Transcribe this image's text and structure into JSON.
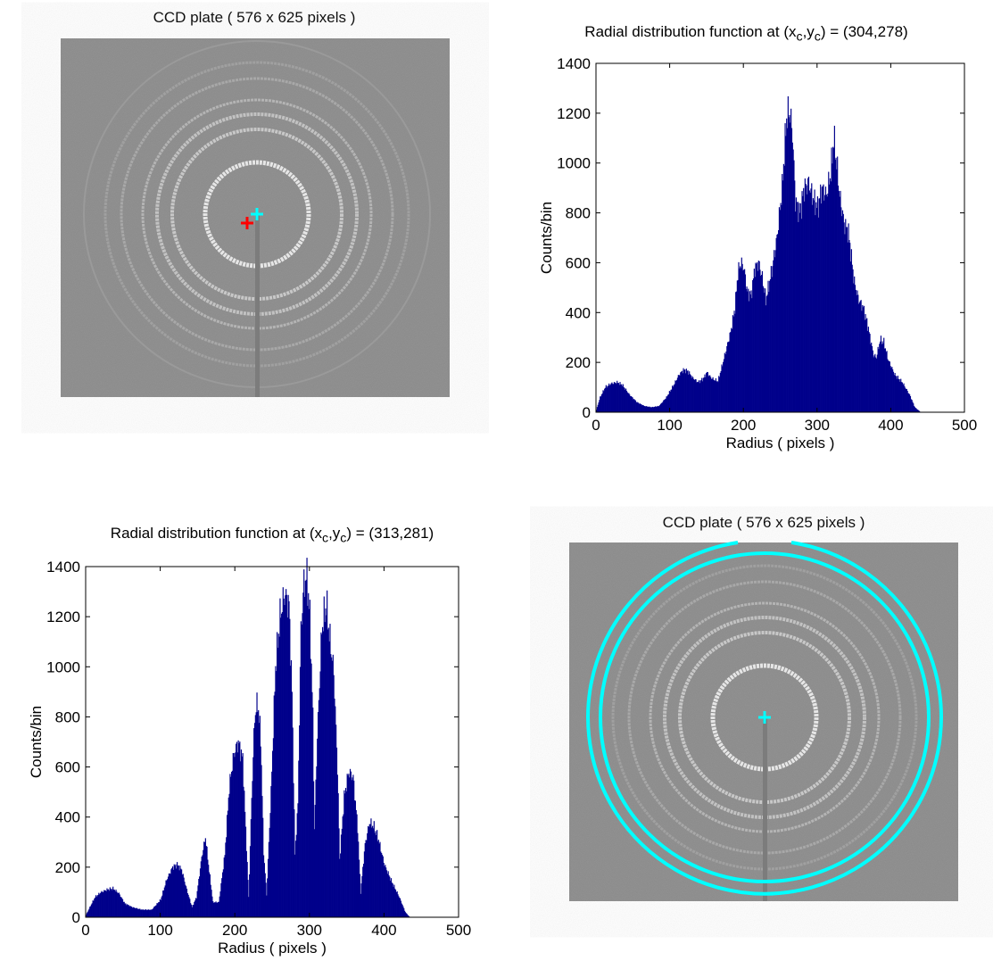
{
  "panels": {
    "top_left": {
      "title": "CCD plate ( 576 x 625 pixels )",
      "marker_colors": {
        "detected_center": "#ff0000",
        "fitted_center": "#00ffff"
      }
    },
    "bottom_right": {
      "title": "CCD plate ( 576 x 625 pixels )",
      "marker_color": "#00ffff",
      "overlay_circle_color": "#00ffff"
    }
  },
  "image_background": "#888888",
  "chart_data": [
    {
      "type": "bar",
      "title_prefix": "Radial distribution function at (x",
      "title_sub1": "c",
      "title_mid": ",y",
      "title_sub2": "c",
      "title_suffix": ") = (304,278)",
      "xlabel": "Radius ( pixels )",
      "ylabel": "Counts/bin",
      "xlim": [
        0,
        500
      ],
      "ylim": [
        0,
        1400
      ],
      "xticks": [
        0,
        100,
        200,
        300,
        400,
        500
      ],
      "yticks": [
        0,
        200,
        400,
        600,
        800,
        1000,
        1200,
        1400
      ],
      "color": "#00008b",
      "grid": false,
      "points": [
        [
          0,
          10
        ],
        [
          5,
          60
        ],
        [
          12,
          100
        ],
        [
          20,
          115
        ],
        [
          28,
          120
        ],
        [
          35,
          110
        ],
        [
          45,
          70
        ],
        [
          55,
          40
        ],
        [
          65,
          25
        ],
        [
          75,
          20
        ],
        [
          85,
          25
        ],
        [
          95,
          60
        ],
        [
          105,
          110
        ],
        [
          112,
          150
        ],
        [
          118,
          170
        ],
        [
          124,
          165
        ],
        [
          130,
          140
        ],
        [
          138,
          120
        ],
        [
          145,
          135
        ],
        [
          150,
          160
        ],
        [
          155,
          140
        ],
        [
          160,
          130
        ],
        [
          165,
          125
        ],
        [
          170,
          180
        ],
        [
          176,
          250
        ],
        [
          182,
          320
        ],
        [
          188,
          420
        ],
        [
          192,
          560
        ],
        [
          196,
          600
        ],
        [
          200,
          580
        ],
        [
          205,
          480
        ],
        [
          210,
          470
        ],
        [
          215,
          580
        ],
        [
          220,
          600
        ],
        [
          225,
          540
        ],
        [
          230,
          450
        ],
        [
          238,
          570
        ],
        [
          245,
          700
        ],
        [
          252,
          900
        ],
        [
          258,
          1180
        ],
        [
          262,
          1210
        ],
        [
          266,
          1120
        ],
        [
          270,
          850
        ],
        [
          276,
          800
        ],
        [
          282,
          900
        ],
        [
          288,
          920
        ],
        [
          294,
          860
        ],
        [
          300,
          820
        ],
        [
          306,
          900
        ],
        [
          312,
          870
        ],
        [
          318,
          960
        ],
        [
          322,
          1100
        ],
        [
          326,
          1000
        ],
        [
          330,
          870
        ],
        [
          336,
          760
        ],
        [
          342,
          720
        ],
        [
          350,
          520
        ],
        [
          356,
          450
        ],
        [
          362,
          420
        ],
        [
          368,
          350
        ],
        [
          376,
          230
        ],
        [
          380,
          220
        ],
        [
          385,
          290
        ],
        [
          390,
          280
        ],
        [
          396,
          210
        ],
        [
          405,
          150
        ],
        [
          415,
          120
        ],
        [
          425,
          70
        ],
        [
          432,
          20
        ],
        [
          440,
          0
        ]
      ]
    },
    {
      "type": "bar",
      "title_prefix": "Radial distribution function at (x",
      "title_sub1": "c",
      "title_mid": ",y",
      "title_sub2": "c",
      "title_suffix": ") = (313,281)",
      "xlabel": "Radius ( pixels )",
      "ylabel": "Counts/bin",
      "xlim": [
        0,
        500
      ],
      "ylim": [
        0,
        1400
      ],
      "xticks": [
        0,
        100,
        200,
        300,
        400,
        500
      ],
      "yticks": [
        0,
        200,
        400,
        600,
        800,
        1000,
        1200,
        1400
      ],
      "color": "#00008b",
      "grid": false,
      "points": [
        [
          0,
          10
        ],
        [
          5,
          40
        ],
        [
          12,
          80
        ],
        [
          20,
          100
        ],
        [
          28,
          110
        ],
        [
          36,
          115
        ],
        [
          44,
          95
        ],
        [
          52,
          55
        ],
        [
          62,
          40
        ],
        [
          75,
          30
        ],
        [
          88,
          30
        ],
        [
          100,
          70
        ],
        [
          108,
          150
        ],
        [
          116,
          200
        ],
        [
          122,
          210
        ],
        [
          128,
          190
        ],
        [
          135,
          110
        ],
        [
          142,
          40
        ],
        [
          148,
          80
        ],
        [
          155,
          240
        ],
        [
          160,
          320
        ],
        [
          164,
          210
        ],
        [
          170,
          60
        ],
        [
          178,
          60
        ],
        [
          186,
          250
        ],
        [
          192,
          520
        ],
        [
          198,
          650
        ],
        [
          204,
          700
        ],
        [
          210,
          630
        ],
        [
          214,
          350
        ],
        [
          218,
          80
        ],
        [
          222,
          480
        ],
        [
          226,
          800
        ],
        [
          230,
          860
        ],
        [
          234,
          720
        ],
        [
          238,
          260
        ],
        [
          242,
          90
        ],
        [
          248,
          500
        ],
        [
          254,
          1000
        ],
        [
          260,
          1200
        ],
        [
          266,
          1290
        ],
        [
          272,
          1250
        ],
        [
          276,
          900
        ],
        [
          280,
          250
        ],
        [
          284,
          450
        ],
        [
          288,
          1150
        ],
        [
          292,
          1330
        ],
        [
          296,
          1360
        ],
        [
          300,
          1200
        ],
        [
          304,
          800
        ],
        [
          306,
          350
        ],
        [
          310,
          720
        ],
        [
          316,
          1150
        ],
        [
          322,
          1250
        ],
        [
          326,
          1130
        ],
        [
          332,
          980
        ],
        [
          337,
          600
        ],
        [
          340,
          230
        ],
        [
          346,
          480
        ],
        [
          352,
          580
        ],
        [
          358,
          560
        ],
        [
          364,
          360
        ],
        [
          368,
          100
        ],
        [
          374,
          290
        ],
        [
          380,
          380
        ],
        [
          386,
          360
        ],
        [
          392,
          310
        ],
        [
          400,
          210
        ],
        [
          410,
          140
        ],
        [
          420,
          80
        ],
        [
          428,
          20
        ],
        [
          434,
          0
        ]
      ]
    }
  ]
}
